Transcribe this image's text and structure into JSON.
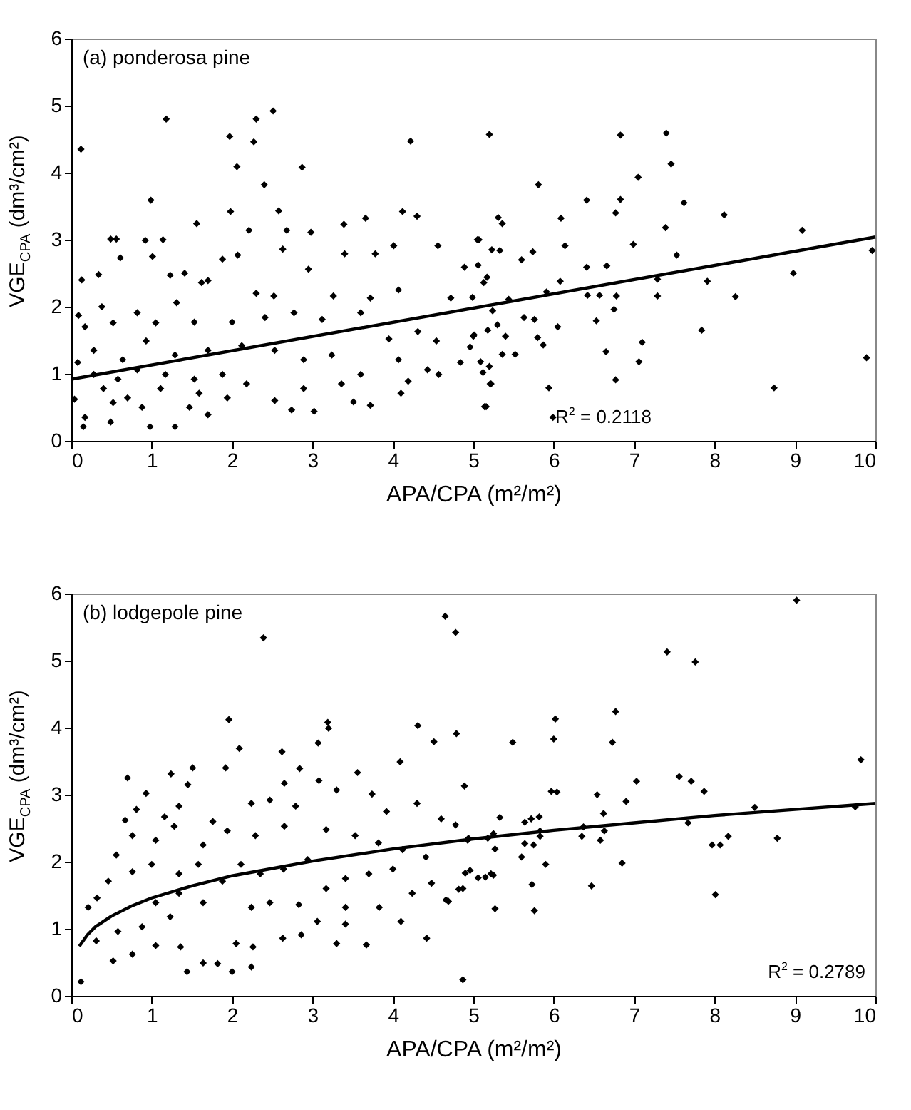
{
  "chart_data": [
    {
      "type": "scatter",
      "title": "(a) ponderosa pine",
      "xlabel": "APA/CPA (m²/m²)",
      "ylabel": "VGE$_{CPA}$ (dm³/cm²)",
      "xlim": [
        0,
        10
      ],
      "ylim": [
        0,
        6
      ],
      "xticks": [
        0,
        1,
        2,
        3,
        4,
        5,
        6,
        7,
        8,
        9,
        10
      ],
      "yticks": [
        0,
        1,
        2,
        3,
        4,
        5,
        6
      ],
      "annotations": [
        "R$^{2}$ = 0.2118"
      ],
      "series": [
        {
          "color": "#000000",
          "marker": "diamond",
          "x": [
            0.12,
            1.18,
            1.97,
            2.27,
            2.3,
            2.51,
            2.06,
            2.87,
            2.4,
            0.99,
            4.22,
            5.2,
            1.98,
            2.58,
            4.3,
            4.12,
            3.66,
            3.39,
            1.56,
            0.49,
            0.56,
            0.92,
            1.14,
            2.21,
            2.68,
            2.98,
            0.13,
            0.34,
            0.61,
            1.01,
            1.23,
            1.41,
            1.7,
            1.88,
            2.07,
            2.63,
            2.95,
            3.4,
            3.78,
            4.01,
            4.56,
            5.05,
            4.89,
            0.38,
            0.82,
            1.31,
            1.62,
            2.3,
            2.52,
            3.26,
            3.72,
            4.07,
            4.72,
            0.09,
            0.17,
            0.52,
            1.05,
            1.53,
            2.0,
            2.41,
            2.77,
            3.12,
            3.6,
            3.95,
            4.31,
            4.54,
            5.0,
            0.08,
            0.28,
            0.64,
            0.93,
            1.29,
            1.7,
            2.12,
            2.53,
            2.89,
            3.24,
            3.6,
            4.07,
            4.43,
            4.84,
            0.04,
            0.17,
            0.15,
            0.4,
            0.49,
            0.7,
            0.98,
            1.29,
            1.11,
            1.47,
            1.7,
            1.94,
            2.18,
            2.53,
            2.74,
            3.02,
            2.89,
            3.36,
            3.51,
            3.72,
            4.1,
            4.19,
            4.57,
            5.14,
            5.21,
            0.28,
            0.58,
            0.82,
            1.17,
            1.53,
            1.88,
            0.52,
            0.88,
            1.59,
            6.83,
            7.4,
            7.46,
            7.05,
            5.81,
            6.41,
            6.83,
            6.77,
            7.62,
            8.12,
            9.09,
            7.39,
            5.31,
            5.36,
            5.07,
            5.23,
            5.33,
            5.6,
            5.74,
            6.09,
            6.14,
            6.99,
            7.53,
            9.96,
            5.06,
            6.41,
            6.66,
            5.13,
            5.17,
            5.91,
            6.08,
            7.29,
            7.91,
            8.98,
            4.99,
            5.44,
            6.42,
            6.57,
            6.78,
            7.29,
            8.26,
            5.24,
            5.63,
            5.76,
            6.05,
            6.53,
            6.75,
            7.84,
            5.18,
            5.3,
            5.01,
            5.4,
            5.8,
            5.87,
            4.96,
            5.52,
            5.36,
            6.65,
            7.1,
            7.06,
            5.09,
            5.2,
            5.12,
            6.77,
            5.22,
            5.94,
            8.74,
            9.89,
            5.16,
            5.99
          ],
          "values": [
            4.35,
            4.8,
            4.54,
            4.46,
            4.8,
            4.92,
            4.09,
            4.08,
            3.82,
            3.59,
            4.47,
            4.57,
            3.42,
            3.43,
            3.35,
            3.42,
            3.32,
            3.23,
            3.24,
            3.01,
            3.01,
            2.99,
            3.0,
            3.14,
            3.14,
            3.11,
            2.4,
            2.48,
            2.73,
            2.75,
            2.47,
            2.5,
            2.39,
            2.71,
            2.77,
            2.86,
            2.56,
            2.79,
            2.79,
            2.91,
            2.91,
            3.0,
            2.59,
            2.0,
            1.91,
            2.06,
            2.36,
            2.2,
            2.16,
            2.16,
            2.13,
            2.25,
            2.13,
            1.87,
            1.7,
            1.76,
            1.76,
            1.77,
            1.77,
            1.84,
            1.91,
            1.81,
            1.91,
            1.52,
            1.63,
            1.49,
            1.56,
            1.17,
            1.35,
            1.21,
            1.49,
            1.28,
            1.35,
            1.42,
            1.35,
            1.21,
            1.28,
            0.99,
            1.21,
            1.06,
            1.17,
            0.62,
            0.35,
            0.21,
            0.78,
            0.28,
            0.64,
            0.21,
            0.21,
            0.78,
            0.5,
            0.39,
            0.64,
            0.85,
            0.6,
            0.46,
            0.44,
            0.78,
            0.85,
            0.58,
            0.53,
            0.71,
            0.89,
            0.99,
            0.51,
            0.85,
            0.99,
            0.92,
            1.06,
            0.99,
            0.92,
            0.99,
            0.57,
            0.5,
            0.71,
            4.56,
            4.59,
            4.13,
            3.93,
            3.82,
            3.59,
            3.6,
            3.4,
            3.55,
            3.37,
            3.14,
            3.18,
            3.33,
            3.24,
            3.0,
            2.85,
            2.84,
            2.7,
            2.82,
            3.32,
            2.91,
            2.93,
            2.77,
            2.84,
            2.62,
            2.59,
            2.61,
            2.36,
            2.44,
            2.22,
            2.38,
            2.41,
            2.38,
            2.5,
            2.14,
            2.11,
            2.17,
            2.17,
            2.16,
            2.16,
            2.15,
            1.94,
            1.84,
            1.81,
            1.7,
            1.79,
            1.96,
            1.65,
            1.65,
            1.73,
            1.58,
            1.56,
            1.54,
            1.43,
            1.4,
            1.29,
            1.29,
            1.33,
            1.47,
            1.18,
            1.18,
            1.11,
            1.02,
            0.91,
            0.85,
            0.79,
            0.79,
            1.24,
            0.51,
            0.35
          ]
        },
        {
          "type": "line",
          "color": "#000000",
          "x": [
            0,
            10
          ],
          "values": [
            0.92,
            3.04
          ]
        }
      ]
    },
    {
      "type": "scatter",
      "title": "(b) lodgepole pine",
      "xlabel": "APA/CPA (m²/m²)",
      "ylabel": "VGE$_{CPA}$ (dm³/cm²)",
      "xlim": [
        0,
        10
      ],
      "ylim": [
        0,
        6
      ],
      "xticks": [
        0,
        1,
        2,
        3,
        4,
        5,
        6,
        7,
        8,
        9,
        10
      ],
      "yticks": [
        0,
        1,
        2,
        3,
        4,
        5,
        6
      ],
      "annotations": [
        "R$^{2}$ = 0.2789"
      ],
      "series": [
        {
          "color": "#000000",
          "marker": "diamond",
          "x": [
            0.12,
            2.39,
            4.65,
            4.78,
            1.96,
            3.19,
            3.2,
            2.09,
            3.07,
            4.31,
            4.51,
            4.79,
            2.62,
            0.7,
            1.24,
            1.51,
            1.92,
            2.84,
            2.65,
            0.93,
            1.45,
            3.56,
            4.09,
            4.89,
            3.08,
            0.67,
            0.81,
            1.16,
            1.34,
            1.76,
            2.24,
            2.47,
            2.79,
            3.3,
            3.74,
            3.92,
            4.3,
            4.6,
            4.78,
            0.56,
            0.76,
            1.05,
            1.28,
            1.64,
            1.94,
            2.29,
            2.65,
            3.17,
            3.53,
            3.82,
            4.12,
            4.41,
            4.93,
            0.21,
            0.32,
            0.46,
            0.76,
            1.0,
            1.34,
            1.58,
            1.88,
            2.11,
            2.35,
            2.64,
            2.94,
            3.17,
            3.41,
            3.7,
            4.0,
            4.24,
            4.48,
            4.66,
            4.82,
            4.9,
            0.31,
            0.52,
            0.76,
            0.58,
            0.88,
            1.05,
            1.23,
            1.36,
            1.44,
            1.64,
            1.82,
            2.0,
            2.05,
            2.24,
            2.26,
            2.47,
            2.63,
            2.86,
            3.06,
            3.3,
            3.41,
            3.67,
            3.83,
            4.1,
            4.42,
            4.69,
            4.87,
            1.64,
            2.24,
            2.83,
            3.41,
            1.05,
            1.34,
            9.02,
            7.41,
            7.76,
            6.77,
            6.02,
            6.0,
            6.73,
            5.49,
            9.82,
            7.56,
            7.71,
            7.03,
            7.87,
            5.97,
            6.04,
            6.54,
            6.9,
            6.62,
            5.33,
            5.64,
            5.72,
            5.82,
            8.5,
            9.75,
            7.67,
            4.94,
            5.18,
            5.25,
            5.27,
            5.64,
            5.75,
            5.83,
            5.83,
            6.35,
            6.37,
            6.58,
            6.63,
            5.6,
            5.9,
            6.85,
            7.97,
            8.07,
            8.17,
            8.78,
            4.96,
            5.06,
            5.15,
            5.22,
            5.25,
            4.87,
            5.73,
            6.47,
            8.01,
            5.27,
            5.76
          ],
          "values": [
            0.21,
            5.34,
            5.66,
            5.42,
            4.12,
            4.08,
            3.99,
            3.69,
            3.77,
            4.03,
            3.79,
            3.91,
            3.64,
            3.25,
            3.31,
            3.4,
            3.4,
            3.39,
            3.17,
            3.02,
            3.15,
            3.33,
            3.49,
            3.13,
            3.21,
            2.62,
            2.78,
            2.67,
            2.83,
            2.6,
            2.87,
            2.92,
            2.83,
            3.07,
            3.01,
            2.75,
            2.87,
            2.64,
            2.55,
            2.1,
            2.39,
            2.32,
            2.53,
            2.25,
            2.46,
            2.39,
            2.53,
            2.48,
            2.39,
            2.28,
            2.18,
            2.07,
            2.32,
            1.32,
            1.46,
            1.71,
            1.85,
            1.96,
            1.82,
            1.96,
            1.71,
            1.96,
            1.82,
            1.89,
            2.03,
            1.6,
            1.75,
            1.82,
            1.89,
            1.53,
            1.68,
            1.43,
            1.59,
            1.83,
            0.82,
            0.52,
            0.62,
            0.96,
            1.03,
            0.75,
            1.18,
            0.73,
            0.36,
            0.49,
            0.48,
            0.36,
            0.78,
            0.43,
            0.73,
            1.39,
            0.86,
            0.91,
            1.11,
            0.78,
            1.07,
            0.76,
            1.32,
            1.11,
            0.86,
            1.41,
            0.24,
            1.39,
            1.32,
            1.36,
            1.32,
            1.39,
            1.53,
            5.9,
            5.13,
            4.98,
            4.24,
            4.13,
            3.83,
            3.78,
            3.78,
            3.52,
            3.27,
            3.2,
            3.2,
            3.05,
            3.05,
            3.04,
            3.0,
            2.9,
            2.72,
            2.66,
            2.59,
            2.64,
            2.67,
            2.81,
            2.82,
            2.58,
            2.35,
            2.35,
            2.42,
            2.19,
            2.27,
            2.25,
            2.46,
            2.38,
            2.38,
            2.52,
            2.32,
            2.46,
            2.07,
            1.96,
            1.98,
            2.25,
            2.25,
            2.38,
            2.35,
            1.87,
            1.76,
            1.77,
            1.82,
            1.8,
            1.6,
            1.66,
            1.64,
            1.51,
            1.3,
            1.27
          ]
        },
        {
          "type": "line",
          "color": "#000000",
          "x": [
            0.1,
            0.2,
            0.3,
            0.5,
            0.75,
            1,
            1.5,
            2,
            3,
            4,
            5,
            6,
            7,
            8,
            9,
            10
          ],
          "values": [
            0.74,
            0.91,
            1.03,
            1.19,
            1.34,
            1.46,
            1.64,
            1.79,
            2.01,
            2.19,
            2.34,
            2.47,
            2.58,
            2.69,
            2.78,
            2.87
          ]
        }
      ]
    }
  ]
}
